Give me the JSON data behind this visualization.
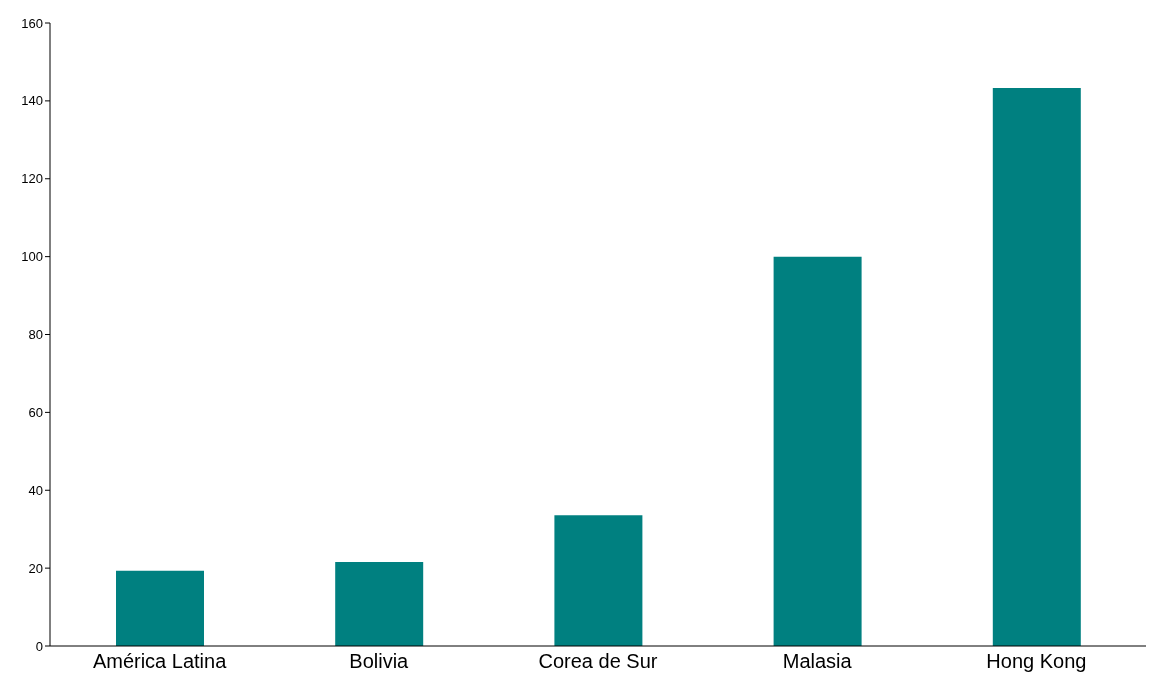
{
  "chart_data": {
    "type": "bar",
    "categories": [
      "América Latina",
      "Bolivia",
      "Corea de Sur",
      "Malasia",
      "Hong Kong"
    ],
    "values": [
      19.3,
      21.6,
      33.6,
      100,
      143.3
    ],
    "color": "#008080",
    "ylim": [
      0,
      160
    ],
    "yticks": [
      0,
      20,
      40,
      60,
      80,
      100,
      120,
      140,
      160
    ],
    "grid": false,
    "legend": false
  }
}
